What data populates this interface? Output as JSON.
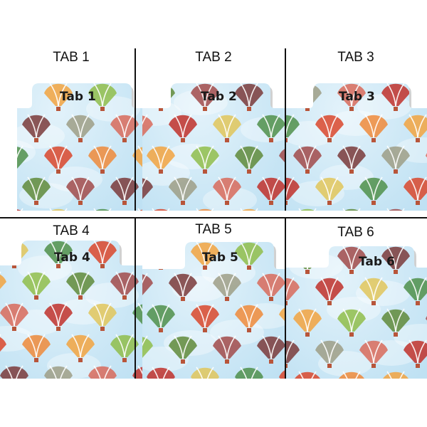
{
  "palette": {
    "sky": "#bfe1f3",
    "sky_light": "#e2f2fa",
    "divider": "#111111",
    "balloons": [
      "#d9462b",
      "#ef8a3a",
      "#f2a340",
      "#8fbd4a",
      "#5f8a3a",
      "#a14a4a",
      "#7a3a3a",
      "#9d9d86",
      "#d86a5a",
      "#c0302a",
      "#e0c65a",
      "#4f8f4a"
    ]
  },
  "tabs": [
    {
      "caption": "TAB 1",
      "label": "Tab 1"
    },
    {
      "caption": "TAB 2",
      "label": "Tab 2"
    },
    {
      "caption": "TAB 3",
      "label": "Tab 3"
    },
    {
      "caption": "TAB 4",
      "label": "Tab 4"
    },
    {
      "caption": "TAB 5",
      "label": "Tab 5"
    },
    {
      "caption": "TAB 6",
      "label": "Tab 6"
    }
  ]
}
